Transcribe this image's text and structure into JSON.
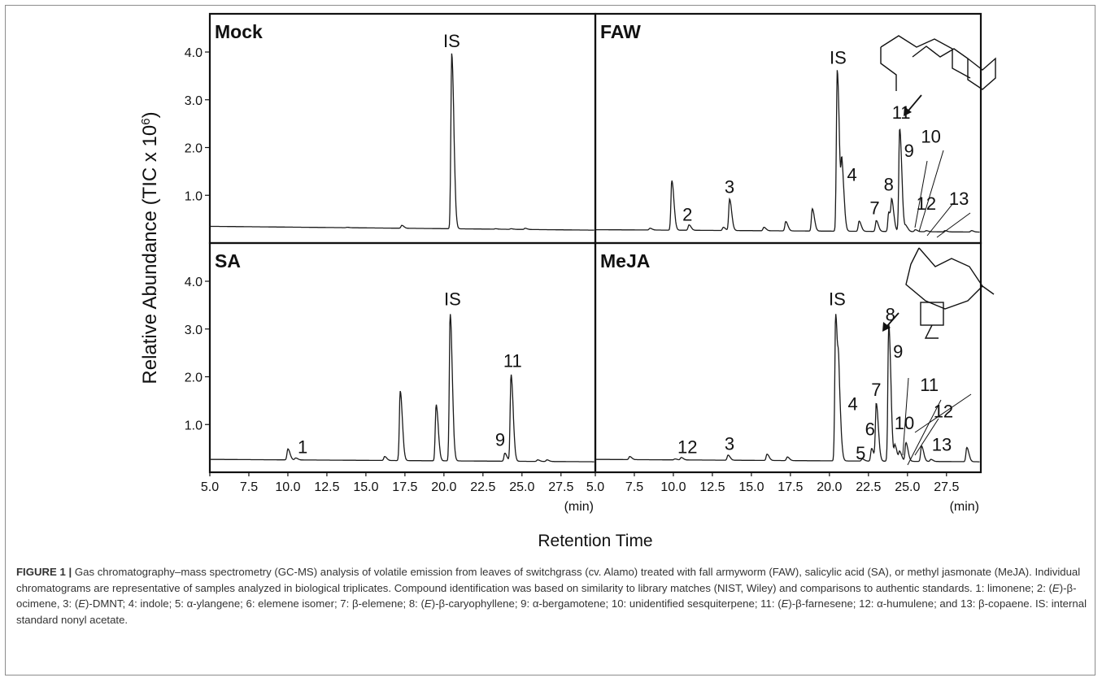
{
  "chart_data": {
    "type": "line",
    "ylabel_main": "Relative Abundance (TIC x 10",
    "ylabel_sup": "6",
    "ylabel_close": ")",
    "xlabel": "Retention Time",
    "x_unit": "(min)",
    "xlim": [
      5.0,
      29.7
    ],
    "ylim": [
      0.0,
      4.8
    ],
    "x_ticks": [
      "5.0",
      "7.5",
      "10.0",
      "12.5",
      "15.0",
      "17.5",
      "20.0",
      "22.5",
      "25.0",
      "27.5"
    ],
    "y_ticks": [
      "1.0",
      "2.0",
      "3.0",
      "4.0"
    ],
    "panels": [
      {
        "title": "Mock",
        "baseline_start": 0.35,
        "baseline_end": 0.27,
        "peaks": [
          {
            "rt": 13.8,
            "h": 0.33
          },
          {
            "rt": 17.3,
            "h": 0.37
          },
          {
            "rt": 20.5,
            "h": 3.97
          },
          {
            "rt": 23.3,
            "h": 0.3
          },
          {
            "rt": 24.3,
            "h": 0.3
          },
          {
            "rt": 25.2,
            "h": 0.31
          }
        ],
        "labels": [
          {
            "text": "IS",
            "rt": 20.5,
            "h": 4.05
          }
        ]
      },
      {
        "title": "FAW",
        "baseline_start": 0.28,
        "baseline_end": 0.23,
        "peaks": [
          {
            "rt": 8.5,
            "h": 0.31
          },
          {
            "rt": 9.9,
            "h": 1.31
          },
          {
            "rt": 11.0,
            "h": 0.38
          },
          {
            "rt": 13.2,
            "h": 0.33
          },
          {
            "rt": 13.6,
            "h": 0.92
          },
          {
            "rt": 15.8,
            "h": 0.33
          },
          {
            "rt": 17.2,
            "h": 0.45
          },
          {
            "rt": 18.9,
            "h": 0.72
          },
          {
            "rt": 20.5,
            "h": 3.62
          },
          {
            "rt": 20.8,
            "h": 1.52
          },
          {
            "rt": 21.9,
            "h": 0.46
          },
          {
            "rt": 23.0,
            "h": 0.47
          },
          {
            "rt": 23.8,
            "h": 0.65
          },
          {
            "rt": 24.0,
            "h": 0.8
          },
          {
            "rt": 24.5,
            "h": 2.4
          },
          {
            "rt": 24.9,
            "h": 0.35
          },
          {
            "rt": 25.5,
            "h": 0.28
          },
          {
            "rt": 26.2,
            "h": 0.26
          },
          {
            "rt": 27.4,
            "h": 0.26
          },
          {
            "rt": 29.1,
            "h": 0.26
          }
        ],
        "labels": [
          {
            "text": "IS",
            "rt": 20.55,
            "h": 3.7
          },
          {
            "text": "2",
            "rt": 10.9,
            "h": 0.42
          },
          {
            "text": "3",
            "rt": 13.6,
            "h": 1.0
          },
          {
            "text": "4",
            "rt": 21.45,
            "h": 1.25
          },
          {
            "text": "7",
            "rt": 22.9,
            "h": 0.55
          },
          {
            "text": "8",
            "rt": 23.8,
            "h": 1.05
          },
          {
            "text": "9",
            "rt": 25.1,
            "h": 1.75
          },
          {
            "text": "10",
            "rt": 26.5,
            "h": 2.05
          },
          {
            "text": "11",
            "rt": 24.6,
            "h": 2.55
          },
          {
            "text": "12",
            "rt": 26.2,
            "h": 0.65
          },
          {
            "text": "13",
            "rt": 28.3,
            "h": 0.75
          }
        ]
      },
      {
        "title": "SA",
        "baseline_start": 0.27,
        "baseline_end": 0.22,
        "peaks": [
          {
            "rt": 10.0,
            "h": 0.49
          },
          {
            "rt": 10.5,
            "h": 0.3
          },
          {
            "rt": 16.2,
            "h": 0.33
          },
          {
            "rt": 17.2,
            "h": 1.7
          },
          {
            "rt": 19.5,
            "h": 1.42
          },
          {
            "rt": 20.4,
            "h": 3.32
          },
          {
            "rt": 23.9,
            "h": 0.4
          },
          {
            "rt": 24.3,
            "h": 2.05
          },
          {
            "rt": 26.0,
            "h": 0.26
          },
          {
            "rt": 26.6,
            "h": 0.26
          }
        ],
        "labels": [
          {
            "text": "IS",
            "rt": 20.55,
            "h": 3.45
          },
          {
            "text": "1",
            "rt": 10.95,
            "h": 0.35
          },
          {
            "text": "9",
            "rt": 23.6,
            "h": 0.5
          },
          {
            "text": "11",
            "rt": 24.4,
            "h": 2.15
          }
        ]
      },
      {
        "title": "MeJA",
        "baseline_start": 0.27,
        "baseline_end": 0.22,
        "peaks": [
          {
            "rt": 7.2,
            "h": 0.33
          },
          {
            "rt": 10.1,
            "h": 0.28
          },
          {
            "rt": 10.5,
            "h": 0.31
          },
          {
            "rt": 13.5,
            "h": 0.36
          },
          {
            "rt": 16.0,
            "h": 0.38
          },
          {
            "rt": 17.3,
            "h": 0.32
          },
          {
            "rt": 20.4,
            "h": 3.32
          },
          {
            "rt": 20.6,
            "h": 1.35
          },
          {
            "rt": 22.1,
            "h": 0.28
          },
          {
            "rt": 22.7,
            "h": 0.5
          },
          {
            "rt": 23.0,
            "h": 1.43
          },
          {
            "rt": 23.8,
            "h": 3.1
          },
          {
            "rt": 24.2,
            "h": 0.55
          },
          {
            "rt": 24.5,
            "h": 0.42
          },
          {
            "rt": 24.9,
            "h": 0.62
          },
          {
            "rt": 25.9,
            "h": 0.55
          },
          {
            "rt": 26.5,
            "h": 0.27
          },
          {
            "rt": 28.8,
            "h": 0.52
          }
        ],
        "labels": [
          {
            "text": "IS",
            "rt": 20.5,
            "h": 3.45
          },
          {
            "text": "12",
            "rt": 10.9,
            "h": 0.35
          },
          {
            "text": "3",
            "rt": 13.6,
            "h": 0.42
          },
          {
            "text": "4",
            "rt": 21.5,
            "h": 1.25
          },
          {
            "text": "5",
            "rt": 22.0,
            "h": 0.22
          },
          {
            "text": "6",
            "rt": 22.6,
            "h": 0.72
          },
          {
            "text": "7",
            "rt": 23.0,
            "h": 1.55
          },
          {
            "text": "8",
            "rt": 23.9,
            "h": 3.12
          },
          {
            "text": "9",
            "rt": 24.4,
            "h": 2.35
          },
          {
            "text": "10",
            "rt": 24.8,
            "h": 0.85
          },
          {
            "text": "11",
            "rt": 26.4,
            "h": 1.65
          },
          {
            "text": "12",
            "rt": 27.3,
            "h": 1.1
          },
          {
            "text": "13",
            "rt": 27.2,
            "h": 0.4
          }
        ]
      }
    ]
  },
  "caption": {
    "lead": "FIGURE 1 |",
    "segments": [
      {
        "t": " Gas chromatography–mass spectrometry (GC-MS) analysis of volatile emission from leaves of switchgrass (cv. Alamo) treated with fall armyworm (FAW), salicylic acid (SA), or methyl jasmonate (MeJA). Individual chromatograms are representative of samples analyzed in biological triplicates. Compound identification was based on similarity to library matches (NIST, Wiley) and comparisons to authentic standards. 1: limonene; 2: (",
        "i": false
      },
      {
        "t": "E",
        "i": true
      },
      {
        "t": ")-β-ocimene, 3: (",
        "i": false
      },
      {
        "t": "E",
        "i": true
      },
      {
        "t": ")-DMNT; 4: indole; 5: α-ylangene; 6: elemene isomer; 7: β-elemene; 8: (",
        "i": false
      },
      {
        "t": "E",
        "i": true
      },
      {
        "t": ")-β-caryophyllene; 9: α-bergamotene; 10: unidentified sesquiterpene; 11: (",
        "i": false
      },
      {
        "t": "E",
        "i": true
      },
      {
        "t": ")-β-farnesene; 12: α-humulene; and 13: β-copaene. IS: internal standard nonyl acetate.",
        "i": false
      }
    ]
  }
}
